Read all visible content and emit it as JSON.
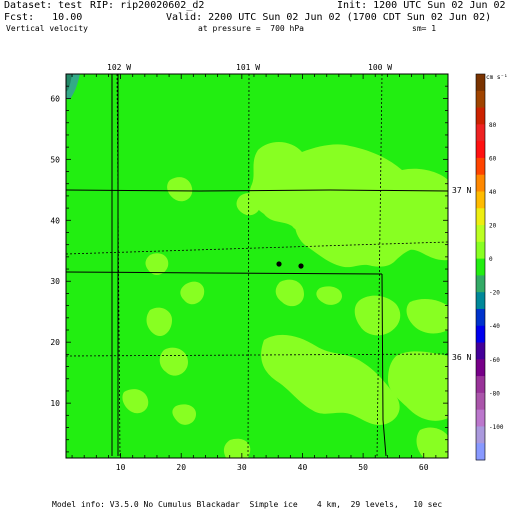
{
  "header": {
    "dataset": "Dataset: test",
    "rip": "RIP: rip20020602_d2",
    "init": "Init: 1200 UTC Sun 02 Jun 02",
    "fcst": "Fcst:   10.00",
    "valid": "Valid: 2200 UTC Sun 02 Jun 02 (1700 CDT Sun 02 Jun 02)",
    "field": "Vertical velocity",
    "pressure": "at pressure =  700 hPa",
    "smooth": "sm= 1"
  },
  "footer": "Model info: V3.5.0 No Cumulus Blackadar  Simple ice    4 km,  29 levels,   10 sec",
  "map": {
    "longitude_labels": [
      "102 W",
      "101 W",
      "100 W"
    ],
    "latitude_labels": [
      "37 N",
      "36 N"
    ],
    "x_ticks": [
      "10",
      "20",
      "30",
      "40",
      "50",
      "60"
    ],
    "y_ticks": [
      "10",
      "20",
      "30",
      "40",
      "50",
      "60"
    ],
    "colors": {
      "background": "#22ee11",
      "light_patch": "#88ff22",
      "teal": "#33aa88",
      "dark_teal": "#228866"
    }
  },
  "colorbar": {
    "units": "cm s⁻¹",
    "labels": [
      "80",
      "60",
      "40",
      "20",
      "0",
      "-20",
      "-40",
      "-60",
      "-80",
      "-100"
    ],
    "colors": [
      "#7a3300",
      "#a04400",
      "#cc2200",
      "#ee2222",
      "#ff1111",
      "#ff4400",
      "#ff8800",
      "#ffbb00",
      "#eeee11",
      "#bbff22",
      "#88ff22",
      "#22ee11",
      "#33aa66",
      "#008899",
      "#0033cc",
      "#0000ee",
      "#440099",
      "#770088",
      "#993399",
      "#aa55aa",
      "#bb77cc",
      "#aa99dd",
      "#8899ff"
    ]
  }
}
